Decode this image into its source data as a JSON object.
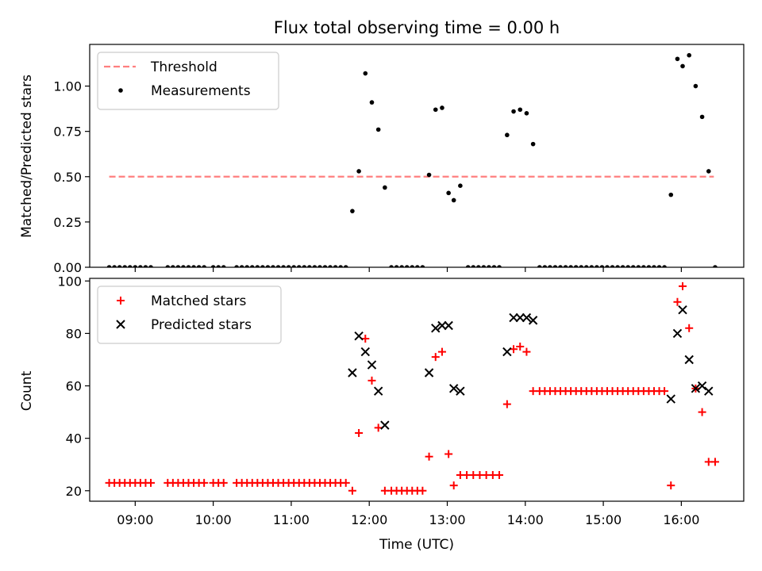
{
  "chart_data": [
    {
      "type": "scatter",
      "title": "Flux total observing time = 0.00 h",
      "ylabel": "Matched/Predicted stars",
      "xlabel": "",
      "ylim": [
        0,
        1.23
      ],
      "xlim": [
        "08:25",
        "16:48"
      ],
      "yticks": [
        "0.00",
        "0.25",
        "0.50",
        "0.75",
        "1.00"
      ],
      "legend_position": "top-left",
      "threshold": {
        "name": "Threshold",
        "y": 0.5,
        "x": [
          "08:40",
          "16:25"
        ],
        "color": "#ff7f7f",
        "style": "dashed"
      },
      "series": [
        {
          "name": "Measurements",
          "color": "#000000",
          "marker": "dot",
          "points": [
            [
              "08:40",
              0
            ],
            [
              "08:44",
              0
            ],
            [
              "08:48",
              0
            ],
            [
              "08:52",
              0
            ],
            [
              "08:56",
              0
            ],
            [
              "09:00",
              0
            ],
            [
              "09:04",
              0
            ],
            [
              "09:08",
              0
            ],
            [
              "09:12",
              0
            ],
            [
              "09:25",
              0
            ],
            [
              "09:29",
              0
            ],
            [
              "09:33",
              0
            ],
            [
              "09:37",
              0
            ],
            [
              "09:41",
              0
            ],
            [
              "09:45",
              0
            ],
            [
              "09:49",
              0
            ],
            [
              "09:53",
              0
            ],
            [
              "10:00",
              0
            ],
            [
              "10:04",
              0
            ],
            [
              "10:08",
              0
            ],
            [
              "10:18",
              0
            ],
            [
              "10:22",
              0
            ],
            [
              "10:26",
              0
            ],
            [
              "10:30",
              0
            ],
            [
              "10:34",
              0
            ],
            [
              "10:38",
              0
            ],
            [
              "10:42",
              0
            ],
            [
              "10:46",
              0
            ],
            [
              "10:50",
              0
            ],
            [
              "10:54",
              0
            ],
            [
              "10:58",
              0
            ],
            [
              "11:02",
              0
            ],
            [
              "11:06",
              0
            ],
            [
              "11:10",
              0
            ],
            [
              "11:14",
              0
            ],
            [
              "11:18",
              0
            ],
            [
              "11:22",
              0
            ],
            [
              "11:26",
              0
            ],
            [
              "11:30",
              0
            ],
            [
              "11:34",
              0
            ],
            [
              "11:38",
              0
            ],
            [
              "11:42",
              0
            ],
            [
              "11:47",
              0.31
            ],
            [
              "11:52",
              0.53
            ],
            [
              "11:57",
              1.07
            ],
            [
              "12:02",
              0.91
            ],
            [
              "12:07",
              0.76
            ],
            [
              "12:12",
              0.44
            ],
            [
              "12:17",
              0
            ],
            [
              "12:21",
              0
            ],
            [
              "12:25",
              0
            ],
            [
              "12:29",
              0
            ],
            [
              "12:33",
              0
            ],
            [
              "12:37",
              0
            ],
            [
              "12:41",
              0
            ],
            [
              "12:46",
              0.51
            ],
            [
              "12:51",
              0.87
            ],
            [
              "12:56",
              0.88
            ],
            [
              "13:01",
              0.41
            ],
            [
              "13:05",
              0.37
            ],
            [
              "13:10",
              0.45
            ],
            [
              "13:16",
              0
            ],
            [
              "13:20",
              0
            ],
            [
              "13:24",
              0
            ],
            [
              "13:28",
              0
            ],
            [
              "13:32",
              0
            ],
            [
              "13:36",
              0
            ],
            [
              "13:40",
              0
            ],
            [
              "13:46",
              0.73
            ],
            [
              "13:51",
              0.86
            ],
            [
              "13:56",
              0.87
            ],
            [
              "14:01",
              0.85
            ],
            [
              "14:06",
              0.68
            ],
            [
              "14:11",
              0
            ],
            [
              "14:15",
              0
            ],
            [
              "14:19",
              0
            ],
            [
              "14:23",
              0
            ],
            [
              "14:27",
              0
            ],
            [
              "14:31",
              0
            ],
            [
              "14:35",
              0
            ],
            [
              "14:39",
              0
            ],
            [
              "14:43",
              0
            ],
            [
              "14:47",
              0
            ],
            [
              "14:51",
              0
            ],
            [
              "14:55",
              0
            ],
            [
              "14:59",
              0
            ],
            [
              "15:03",
              0
            ],
            [
              "15:07",
              0
            ],
            [
              "15:11",
              0
            ],
            [
              "15:15",
              0
            ],
            [
              "15:19",
              0
            ],
            [
              "15:23",
              0
            ],
            [
              "15:27",
              0
            ],
            [
              "15:31",
              0
            ],
            [
              "15:35",
              0
            ],
            [
              "15:39",
              0
            ],
            [
              "15:43",
              0
            ],
            [
              "15:47",
              0
            ],
            [
              "15:52",
              0.4
            ],
            [
              "15:57",
              1.15
            ],
            [
              "16:01",
              1.11
            ],
            [
              "16:06",
              1.17
            ],
            [
              "16:11",
              1.0
            ],
            [
              "16:16",
              0.83
            ],
            [
              "16:21",
              0.53
            ],
            [
              "16:26",
              0
            ]
          ]
        }
      ]
    },
    {
      "type": "scatter",
      "title": "",
      "ylabel": "Count",
      "xlabel": "Time (UTC)",
      "ylim": [
        16,
        101
      ],
      "xlim": [
        "08:25",
        "16:48"
      ],
      "xticks": [
        "09:00",
        "10:00",
        "11:00",
        "12:00",
        "13:00",
        "14:00",
        "15:00",
        "16:00"
      ],
      "yticks": [
        "20",
        "40",
        "60",
        "80",
        "100"
      ],
      "legend_position": "top-left",
      "series": [
        {
          "name": "Matched stars",
          "color": "#ff0000",
          "marker": "plus",
          "points": [
            [
              "08:40",
              23
            ],
            [
              "08:44",
              23
            ],
            [
              "08:48",
              23
            ],
            [
              "08:52",
              23
            ],
            [
              "08:56",
              23
            ],
            [
              "09:00",
              23
            ],
            [
              "09:04",
              23
            ],
            [
              "09:08",
              23
            ],
            [
              "09:12",
              23
            ],
            [
              "09:25",
              23
            ],
            [
              "09:29",
              23
            ],
            [
              "09:33",
              23
            ],
            [
              "09:37",
              23
            ],
            [
              "09:41",
              23
            ],
            [
              "09:45",
              23
            ],
            [
              "09:49",
              23
            ],
            [
              "09:53",
              23
            ],
            [
              "10:00",
              23
            ],
            [
              "10:04",
              23
            ],
            [
              "10:08",
              23
            ],
            [
              "10:18",
              23
            ],
            [
              "10:22",
              23
            ],
            [
              "10:26",
              23
            ],
            [
              "10:30",
              23
            ],
            [
              "10:34",
              23
            ],
            [
              "10:38",
              23
            ],
            [
              "10:42",
              23
            ],
            [
              "10:46",
              23
            ],
            [
              "10:50",
              23
            ],
            [
              "10:54",
              23
            ],
            [
              "10:58",
              23
            ],
            [
              "11:02",
              23
            ],
            [
              "11:06",
              23
            ],
            [
              "11:10",
              23
            ],
            [
              "11:14",
              23
            ],
            [
              "11:18",
              23
            ],
            [
              "11:22",
              23
            ],
            [
              "11:26",
              23
            ],
            [
              "11:30",
              23
            ],
            [
              "11:34",
              23
            ],
            [
              "11:38",
              23
            ],
            [
              "11:42",
              23
            ],
            [
              "11:47",
              20
            ],
            [
              "11:52",
              42
            ],
            [
              "11:57",
              78
            ],
            [
              "12:02",
              62
            ],
            [
              "12:07",
              44
            ],
            [
              "12:12",
              20
            ],
            [
              "12:17",
              20
            ],
            [
              "12:21",
              20
            ],
            [
              "12:25",
              20
            ],
            [
              "12:29",
              20
            ],
            [
              "12:33",
              20
            ],
            [
              "12:37",
              20
            ],
            [
              "12:41",
              20
            ],
            [
              "12:46",
              33
            ],
            [
              "12:51",
              71
            ],
            [
              "12:56",
              73
            ],
            [
              "13:01",
              34
            ],
            [
              "13:05",
              22
            ],
            [
              "13:10",
              26
            ],
            [
              "13:15",
              26
            ],
            [
              "13:20",
              26
            ],
            [
              "13:25",
              26
            ],
            [
              "13:30",
              26
            ],
            [
              "13:35",
              26
            ],
            [
              "13:40",
              26
            ],
            [
              "13:46",
              53
            ],
            [
              "13:51",
              74
            ],
            [
              "13:56",
              75
            ],
            [
              "14:01",
              73
            ],
            [
              "14:06",
              58
            ],
            [
              "14:11",
              58
            ],
            [
              "14:15",
              58
            ],
            [
              "14:19",
              58
            ],
            [
              "14:23",
              58
            ],
            [
              "14:27",
              58
            ],
            [
              "14:31",
              58
            ],
            [
              "14:35",
              58
            ],
            [
              "14:39",
              58
            ],
            [
              "14:43",
              58
            ],
            [
              "14:47",
              58
            ],
            [
              "14:51",
              58
            ],
            [
              "14:55",
              58
            ],
            [
              "14:59",
              58
            ],
            [
              "15:03",
              58
            ],
            [
              "15:07",
              58
            ],
            [
              "15:11",
              58
            ],
            [
              "15:15",
              58
            ],
            [
              "15:19",
              58
            ],
            [
              "15:23",
              58
            ],
            [
              "15:27",
              58
            ],
            [
              "15:31",
              58
            ],
            [
              "15:35",
              58
            ],
            [
              "15:39",
              58
            ],
            [
              "15:43",
              58
            ],
            [
              "15:47",
              58
            ],
            [
              "15:52",
              22
            ],
            [
              "15:57",
              92
            ],
            [
              "16:01",
              98
            ],
            [
              "16:06",
              82
            ],
            [
              "16:11",
              59
            ],
            [
              "16:16",
              50
            ],
            [
              "16:21",
              31
            ],
            [
              "16:26",
              31
            ]
          ]
        },
        {
          "name": "Predicted stars",
          "color": "#000000",
          "marker": "x",
          "points": [
            [
              "11:47",
              65
            ],
            [
              "11:52",
              79
            ],
            [
              "11:57",
              73
            ],
            [
              "12:02",
              68
            ],
            [
              "12:07",
              58
            ],
            [
              "12:12",
              45
            ],
            [
              "12:46",
              65
            ],
            [
              "12:51",
              82
            ],
            [
              "12:56",
              83
            ],
            [
              "13:01",
              83
            ],
            [
              "13:05",
              59
            ],
            [
              "13:10",
              58
            ],
            [
              "13:46",
              73
            ],
            [
              "13:51",
              86
            ],
            [
              "13:56",
              86
            ],
            [
              "14:01",
              86
            ],
            [
              "14:06",
              85
            ],
            [
              "15:52",
              55
            ],
            [
              "15:57",
              80
            ],
            [
              "16:01",
              89
            ],
            [
              "16:06",
              70
            ],
            [
              "16:11",
              59
            ],
            [
              "16:16",
              60
            ],
            [
              "16:21",
              58
            ]
          ]
        }
      ]
    }
  ]
}
